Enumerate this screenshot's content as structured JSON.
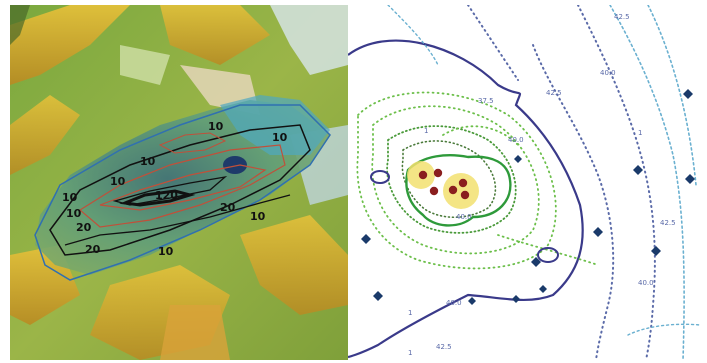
{
  "colors": {
    "terrain_low": "#6b9a3a",
    "terrain_high": "#d4a52a",
    "plume_fill": "#5a9a6a",
    "plume_core": "#2a4a6a",
    "contour_black": "#111111",
    "contour_red": "#c0503a",
    "contour_blue": "#3070b0",
    "outer_contour": "#3a3a8a",
    "inner_contour": "#2e9a3a",
    "dotted_green": "#6cbf4a",
    "dotted_navy": "#5a6aa8",
    "dotted_cyan": "#6ab0d0",
    "source_marker": "#8a1e1e",
    "source_halo": "#f2e070",
    "receptor_marker": "#1a3a6a"
  },
  "terrain_panel": {
    "contour_labels": [
      "10",
      "20",
      "10",
      "20",
      "10",
      "120",
      "10",
      "20",
      "10",
      "10",
      "10",
      "10"
    ]
  },
  "contour_panel": {
    "contour_labels": [
      "42.5",
      "40.0",
      "42.5",
      "40.0",
      "42.5",
      "40.0",
      "40.0",
      "37.5",
      "40.0",
      "42.5",
      "1",
      "1",
      "1",
      "1"
    ]
  }
}
